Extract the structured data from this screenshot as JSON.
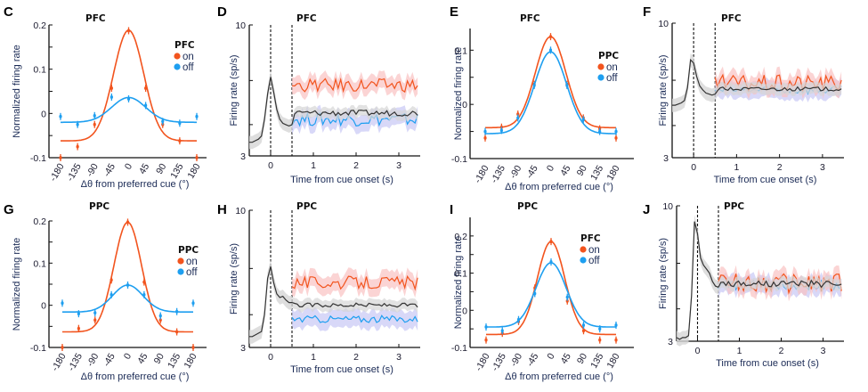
{
  "colors": {
    "on": "#f2541e",
    "off": "#1e9ff0",
    "baseline": "#333333",
    "on_band": "#f9c2c2",
    "off_band": "#c8c8f5",
    "baseline_band": "#d6d6d6"
  },
  "chart_data": [
    {
      "id": "C",
      "type": "scatter+line",
      "letter": "C",
      "title": "PFC",
      "xlabel": "Δθ from preferred cue (°)",
      "ylabel": "Normalized firing rate",
      "xlim": [
        -180,
        180
      ],
      "ylim": [
        -0.1,
        0.2
      ],
      "xticks": [
        -180,
        -135,
        -90,
        -45,
        0,
        45,
        90,
        135,
        180
      ],
      "xtick_labels": [
        "-180",
        "-135",
        "-90",
        "-45",
        "0",
        "45",
        "90",
        "135",
        "180"
      ],
      "yticks": [
        -0.1,
        -0.05,
        0,
        0.05,
        0.1,
        0.15,
        0.2
      ],
      "ytick_labels": [
        "-0.1",
        "",
        "0",
        "",
        "0.1",
        "",
        "0.2"
      ],
      "legend": {
        "title": "PFC",
        "position": "right",
        "entries": [
          "on",
          "off"
        ]
      },
      "series": [
        {
          "name": "on",
          "points": [
            -0.1,
            -0.075,
            -0.025,
            0.057,
            0.187,
            0.057,
            -0.025,
            -0.062,
            -0.1
          ],
          "fit": {
            "base": -0.062,
            "amp": 0.25,
            "sigma": 40
          }
        },
        {
          "name": "off",
          "points": [
            -0.007,
            -0.025,
            -0.005,
            0.037,
            0.033,
            0.018,
            -0.018,
            -0.022,
            -0.007
          ],
          "fit": {
            "base": -0.02,
            "amp": 0.056,
            "sigma": 45
          }
        }
      ]
    },
    {
      "id": "D",
      "type": "line",
      "letter": "D",
      "title": "PFC",
      "xlabel": "Time from cue onset (s)",
      "ylabel": "Firing rate (sp/s)",
      "xlim": [
        -0.5,
        3.5
      ],
      "ylim": [
        3,
        10
      ],
      "xticks": [
        0,
        1,
        2,
        3
      ],
      "xtick_labels": [
        "0",
        "1",
        "2",
        "3"
      ],
      "ytick_labels": [
        "3",
        "10"
      ],
      "vlines": [
        0,
        0.5
      ],
      "series": [
        {
          "name": "baseline",
          "pre": [
            3.4,
            3.4,
            3.45,
            3.5,
            3.6,
            4.2,
            5.3,
            6.2,
            5.4,
            4.6,
            4.2,
            4.05,
            4.0,
            3.95,
            4.0
          ],
          "post_level": 4.45,
          "post_noise": 0.12
        },
        {
          "name": "on",
          "post_level": 5.75,
          "post_noise": 0.35
        },
        {
          "name": "off",
          "post_level": 4.2,
          "post_noise": 0.25
        }
      ]
    },
    {
      "id": "E",
      "type": "scatter+line",
      "letter": "E",
      "title": "PFC",
      "xlabel": "Δθ from preferred cue (°)",
      "ylabel": "Normalized firing rate",
      "xlim": [
        -180,
        180
      ],
      "ylim": [
        -0.1,
        0.14
      ],
      "xticks": [
        -180,
        -135,
        -90,
        -45,
        0,
        45,
        90,
        135,
        180
      ],
      "xtick_labels": [
        "-180",
        "-135",
        "-90",
        "-45",
        "0",
        "45",
        "90",
        "135",
        "180"
      ],
      "yticks": [
        -0.1,
        -0.05,
        0,
        0.05,
        0.1
      ],
      "ytick_labels": [
        "-0.1",
        "",
        "0",
        "",
        "0.1"
      ],
      "legend": {
        "title": "PPC",
        "position": "right",
        "entries": [
          "on",
          "off"
        ]
      },
      "series": [
        {
          "name": "on",
          "points": [
            -0.062,
            -0.042,
            -0.018,
            0.037,
            0.125,
            0.037,
            -0.025,
            -0.045,
            -0.062
          ],
          "fit": {
            "base": -0.043,
            "amp": 0.168,
            "sigma": 42
          }
        },
        {
          "name": "off",
          "points": [
            -0.05,
            -0.048,
            -0.025,
            0.035,
            0.1,
            0.035,
            -0.028,
            -0.05,
            -0.05
          ],
          "fit": {
            "base": -0.054,
            "amp": 0.151,
            "sigma": 44
          }
        }
      ]
    },
    {
      "id": "F",
      "type": "line",
      "letter": "F",
      "title": "PFC",
      "xlabel": "Time from cue onset (s)",
      "ylabel": "Firing rate (sp/s)",
      "xlim": [
        -0.5,
        3.5
      ],
      "ylim": [
        3,
        10
      ],
      "xticks": [
        0,
        1,
        2,
        3
      ],
      "xtick_labels": [
        "0",
        "1",
        "2",
        "3"
      ],
      "ytick_labels": [
        "3",
        "10"
      ],
      "vlines": [
        0,
        0.5
      ],
      "series": [
        {
          "name": "baseline",
          "pre": [
            4.8,
            4.8,
            4.85,
            4.9,
            5.0,
            5.6,
            7.2,
            7.0,
            6.2,
            5.7,
            5.5,
            5.35,
            5.3,
            5.25,
            5.3
          ],
          "post_level": 5.55,
          "post_noise": 0.1
        },
        {
          "name": "on",
          "post_level": 5.85,
          "post_noise": 0.45
        },
        {
          "name": "off",
          "post_level": 5.5,
          "post_noise": 0.2
        }
      ]
    },
    {
      "id": "G",
      "type": "scatter+line",
      "letter": "G",
      "title": "PPC",
      "xlabel": "Δθ from preferred cue (°)",
      "ylabel": "Normalized firing rate",
      "xlim": [
        -180,
        180
      ],
      "ylim": [
        -0.1,
        0.2
      ],
      "xticks": [
        -180,
        -135,
        -90,
        -45,
        0,
        45,
        90,
        135,
        180
      ],
      "xtick_labels": [
        "-180",
        "-135",
        "-90",
        "-45",
        "0",
        "45",
        "90",
        "135",
        "180"
      ],
      "yticks": [
        -0.1,
        -0.05,
        0,
        0.05,
        0.1,
        0.15,
        0.2
      ],
      "ytick_labels": [
        "-0.1",
        "",
        "0",
        "",
        "0.1",
        "",
        "0.2"
      ],
      "legend": {
        "title": "PPC",
        "position": "right",
        "entries": [
          "on",
          "off"
        ]
      },
      "series": [
        {
          "name": "on",
          "points": [
            -0.1,
            -0.055,
            -0.035,
            0.06,
            0.197,
            0.055,
            -0.035,
            -0.063,
            -0.1
          ],
          "fit": {
            "base": -0.063,
            "amp": 0.26,
            "sigma": 38
          }
        },
        {
          "name": "off",
          "points": [
            0.005,
            -0.02,
            -0.018,
            0.025,
            0.048,
            0.025,
            -0.025,
            -0.015,
            0.005
          ],
          "fit": {
            "base": -0.016,
            "amp": 0.064,
            "sigma": 42
          }
        }
      ]
    },
    {
      "id": "H",
      "type": "line",
      "letter": "H",
      "title": "PPC",
      "xlabel": "Time from cue onset (s)",
      "ylabel": "Firing rate (sp/s)",
      "xlim": [
        -0.5,
        3.5
      ],
      "ylim": [
        3,
        10
      ],
      "xticks": [
        0,
        1,
        2,
        3
      ],
      "xtick_labels": [
        "0",
        "1",
        "2",
        "3"
      ],
      "ytick_labels": [
        "3",
        "10"
      ],
      "vlines": [
        0,
        0.5
      ],
      "series": [
        {
          "name": "baseline",
          "pre": [
            3.3,
            3.3,
            3.35,
            3.4,
            3.45,
            4.0,
            5.5,
            6.1,
            5.3,
            4.8,
            4.65,
            4.7,
            4.55,
            4.45,
            4.45
          ],
          "post_level": 4.35,
          "post_noise": 0.08
        },
        {
          "name": "on",
          "post_level": 5.3,
          "post_noise": 0.3
        },
        {
          "name": "off",
          "post_level": 3.85,
          "post_noise": 0.12
        }
      ]
    },
    {
      "id": "I",
      "type": "scatter+line",
      "letter": "I",
      "title": "PPC",
      "xlabel": "Δθ from preferred cue (°)",
      "ylabel": "Normalized firing rate",
      "xlim": [
        -180,
        180
      ],
      "ylim": [
        -0.1,
        0.25
      ],
      "xticks": [
        -180,
        -135,
        -90,
        -45,
        0,
        45,
        90,
        135,
        180
      ],
      "xtick_labels": [
        "-180",
        "-135",
        "-90",
        "-45",
        "0",
        "45",
        "90",
        "135",
        "180"
      ],
      "yticks": [
        -0.1,
        -0.05,
        0,
        0.05,
        0.1,
        0.15,
        0.2
      ],
      "ytick_labels": [
        "-0.1",
        "",
        "0",
        "",
        "0.1",
        "",
        "0.2"
      ],
      "legend": {
        "title": "PFC",
        "position": "right",
        "entries": [
          "on",
          "off"
        ]
      },
      "series": [
        {
          "name": "on",
          "points": [
            -0.08,
            -0.062,
            -0.03,
            0.06,
            0.185,
            0.025,
            -0.055,
            -0.08,
            -0.08
          ],
          "fit": {
            "base": -0.065,
            "amp": 0.25,
            "sigma": 38
          }
        },
        {
          "name": "off",
          "points": [
            -0.045,
            -0.055,
            -0.025,
            0.045,
            0.13,
            0.035,
            -0.04,
            -0.05,
            -0.04
          ],
          "fit": {
            "base": -0.045,
            "amp": 0.173,
            "sigma": 42
          }
        }
      ]
    },
    {
      "id": "J",
      "type": "line",
      "letter": "J",
      "title": "PPC",
      "xlabel": "Time from cue onset (s)",
      "ylabel": "Firing rate (sp/s)",
      "xlim": [
        -0.5,
        3.5
      ],
      "ylim": [
        3,
        10
      ],
      "xticks": [
        0,
        1,
        2,
        3
      ],
      "xtick_labels": [
        "0",
        "1",
        "2",
        "3"
      ],
      "ytick_labels": [
        "3",
        "10"
      ],
      "vlines": [
        0,
        0.5
      ],
      "series": [
        {
          "name": "baseline",
          "pre": [
            3.1,
            3.05,
            3.1,
            3.1,
            3.15,
            4.5,
            8.7,
            7.8,
            6.3,
            5.9,
            5.7,
            5.5,
            5.1,
            4.9,
            4.85
          ],
          "post_level": 5.0,
          "post_noise": 0.15
        },
        {
          "name": "on",
          "post_level": 5.05,
          "post_noise": 0.45
        },
        {
          "name": "off",
          "post_level": 4.95,
          "post_noise": 0.2
        }
      ]
    }
  ]
}
